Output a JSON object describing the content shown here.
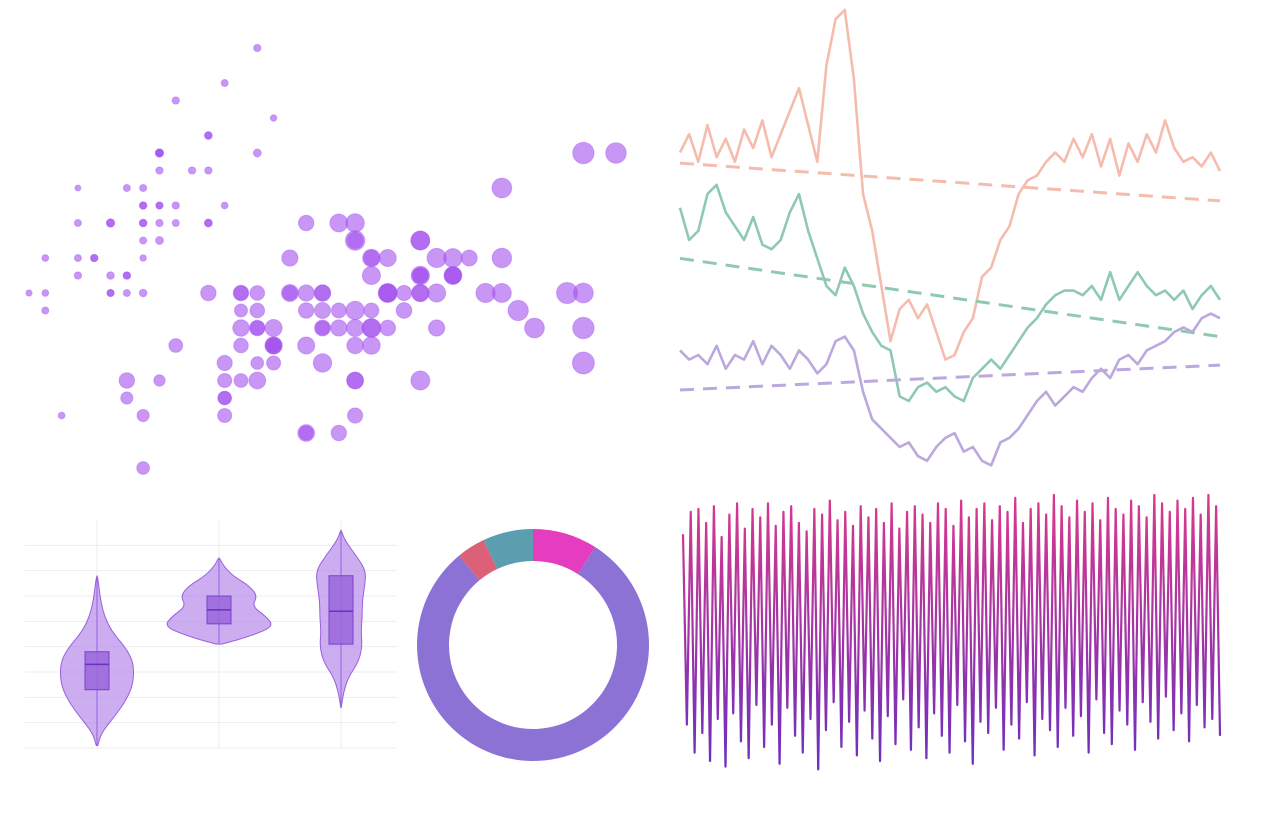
{
  "chart_data": [
    {
      "type": "scatter",
      "xlim": [
        4.3,
        7.9
      ],
      "ylim": [
        2.0,
        4.4
      ],
      "series": [
        {
          "color": "#a352ee",
          "x": [
            5.1,
            4.9,
            4.7,
            4.6,
            5.0,
            5.4,
            4.6,
            5.0,
            4.4,
            4.9,
            5.4,
            4.8,
            4.8,
            4.3,
            5.8,
            5.7,
            5.4,
            5.1,
            5.7,
            5.1,
            5.4,
            5.1,
            4.6,
            5.1,
            4.8,
            5.0,
            5.0,
            5.2,
            5.2,
            4.7,
            4.8,
            5.4,
            5.2,
            5.5,
            4.9,
            5.0,
            5.5,
            4.9,
            4.4,
            5.1,
            5.0,
            4.5,
            4.4,
            5.0,
            5.1,
            4.8,
            5.1,
            4.6,
            5.3,
            5.0,
            7.0,
            6.4,
            6.9,
            5.5,
            6.5,
            5.7,
            6.3,
            4.9,
            6.6,
            5.2,
            5.0,
            5.9,
            6.0,
            6.1,
            5.6,
            6.7,
            5.6,
            5.8,
            6.2,
            5.6,
            5.9,
            6.1,
            6.3,
            6.1,
            6.4,
            6.6,
            6.8,
            6.7,
            6.0,
            5.7,
            5.5,
            5.5,
            5.8,
            6.0,
            5.4,
            6.0,
            6.7,
            6.3,
            5.6,
            5.5,
            5.5,
            6.1,
            5.8,
            5.0,
            5.6,
            5.7,
            5.7,
            6.2,
            5.1,
            5.7,
            6.3,
            5.8,
            7.1,
            6.3,
            6.5,
            7.6,
            4.9,
            7.3,
            6.7,
            7.2,
            6.5,
            6.4,
            6.8,
            5.7,
            5.8,
            6.4,
            6.5,
            7.7,
            7.7,
            6.0,
            6.9,
            5.6,
            7.7,
            6.3,
            6.7,
            7.2,
            6.2,
            6.1,
            6.4,
            7.2,
            7.4,
            7.9,
            6.4,
            6.3,
            6.1,
            7.7,
            6.3,
            6.4,
            6.0,
            6.9,
            6.7,
            6.9,
            5.8,
            6.8,
            6.7,
            6.7,
            6.3,
            6.5,
            6.2,
            5.9
          ],
          "values": [
            3.5,
            3.0,
            3.2,
            3.1,
            3.6,
            3.9,
            3.4,
            3.4,
            2.9,
            3.1,
            3.7,
            3.4,
            3.0,
            3.0,
            4.0,
            4.4,
            3.9,
            3.5,
            3.8,
            3.8,
            3.4,
            3.7,
            3.6,
            3.3,
            3.4,
            3.0,
            3.4,
            3.5,
            3.4,
            3.2,
            3.1,
            3.4,
            4.1,
            4.2,
            3.1,
            3.2,
            3.5,
            3.6,
            3.0,
            3.4,
            3.5,
            2.3,
            3.2,
            3.5,
            3.8,
            3.0,
            3.8,
            3.2,
            3.7,
            3.3,
            3.2,
            3.2,
            3.1,
            2.3,
            2.8,
            2.8,
            3.3,
            2.4,
            2.9,
            2.7,
            2.0,
            3.0,
            2.2,
            2.9,
            2.9,
            3.1,
            3.0,
            2.7,
            2.2,
            2.5,
            3.2,
            2.8,
            2.5,
            2.8,
            2.9,
            3.0,
            2.8,
            3.0,
            2.9,
            2.6,
            2.4,
            2.4,
            2.7,
            2.7,
            3.0,
            3.4,
            3.1,
            2.3,
            3.0,
            2.5,
            2.6,
            3.0,
            2.6,
            2.3,
            2.7,
            3.0,
            2.9,
            2.9,
            2.5,
            2.8,
            3.3,
            2.7,
            3.0,
            2.9,
            3.0,
            3.0,
            2.5,
            2.9,
            2.5,
            3.6,
            3.2,
            2.7,
            3.0,
            2.5,
            2.8,
            3.2,
            3.0,
            3.8,
            2.6,
            2.2,
            3.2,
            2.8,
            2.8,
            2.7,
            3.3,
            3.2,
            2.8,
            3.0,
            2.8,
            3.0,
            2.8,
            3.8,
            2.8,
            2.8,
            2.6,
            3.0,
            3.4,
            3.1,
            3.0,
            3.1,
            3.1,
            3.1,
            2.7,
            3.2,
            3.3,
            3.0,
            2.5,
            3.0,
            3.4,
            3.0
          ],
          "sizes": [
            1.4,
            1.4,
            1.3,
            1.5,
            1.4,
            1.7,
            1.4,
            1.5,
            1.4,
            1.5,
            1.5,
            1.6,
            1.4,
            1.1,
            1.2,
            1.5,
            1.3,
            1.4,
            1.7,
            1.5,
            1.7,
            1.5,
            1.0,
            1.7,
            1.9,
            1.6,
            1.6,
            1.5,
            1.4,
            1.6,
            1.6,
            1.5,
            1.5,
            1.4,
            1.5,
            1.2,
            1.3,
            1.4,
            1.3,
            1.5,
            1.3,
            1.3,
            1.3,
            1.6,
            1.9,
            1.4,
            1.6,
            1.4,
            1.5,
            1.4,
            4.7,
            4.5,
            4.9,
            4.0,
            4.6,
            4.5,
            4.7,
            3.3,
            4.6,
            3.9,
            3.5,
            4.2,
            4.0,
            4.7,
            3.6,
            4.4,
            4.5,
            4.1,
            4.5,
            3.9,
            4.8,
            4.0,
            4.9,
            4.7,
            4.3,
            4.4,
            4.8,
            5.0,
            4.5,
            3.5,
            3.8,
            3.7,
            3.9,
            5.1,
            4.5,
            4.5,
            4.7,
            4.4,
            4.1,
            4.0,
            4.4,
            4.6,
            4.0,
            3.3,
            4.2,
            4.2,
            4.2,
            4.3,
            3.0,
            4.1,
            6.0,
            5.1,
            5.9,
            5.6,
            5.8,
            6.6,
            4.5,
            6.3,
            5.8,
            6.1,
            5.1,
            5.3,
            5.5,
            5.0,
            5.1,
            5.3,
            5.5,
            6.7,
            6.9,
            5.0,
            5.7,
            4.9,
            6.7,
            4.9,
            5.7,
            6.0,
            4.8,
            4.9,
            5.6,
            5.8,
            6.1,
            6.4,
            5.6,
            5.1,
            5.6,
            6.1,
            5.6,
            5.5,
            4.8,
            5.4,
            5.6,
            5.1,
            5.1,
            5.9,
            5.7,
            5.2,
            5.0,
            5.2,
            5.4,
            5.1
          ]
        }
      ]
    },
    {
      "type": "line",
      "ylim": [
        0,
        100
      ],
      "series": [
        {
          "color": "#f5bcae",
          "trend": [
            66.7,
            58.5
          ],
          "values": [
            69,
            73,
            67,
            75,
            68,
            72,
            67,
            74,
            70,
            76,
            68,
            73,
            78,
            83,
            75,
            67,
            88,
            98,
            100,
            85,
            60,
            52,
            40,
            28,
            35,
            37,
            33,
            36,
            30,
            24,
            25,
            30,
            33,
            42,
            44,
            50,
            53,
            60,
            63,
            64,
            67,
            69,
            67,
            72,
            68,
            73,
            66,
            72,
            64,
            71,
            67,
            73,
            69,
            76,
            70,
            67,
            68,
            66,
            69,
            65
          ]
        },
        {
          "color": "#8fc9b2",
          "trend": [
            46,
            29
          ],
          "values": [
            57,
            50,
            52,
            60,
            62,
            56,
            53,
            50,
            55,
            49,
            48,
            50,
            56,
            60,
            52,
            46,
            40,
            38,
            44,
            40,
            34,
            30,
            27,
            26,
            16,
            15,
            18,
            19,
            17,
            18,
            16,
            15,
            20,
            22,
            24,
            22,
            25,
            28,
            31,
            33,
            36,
            38,
            39,
            39,
            38,
            40,
            37,
            43,
            37,
            40,
            43,
            40,
            38,
            39,
            37,
            39,
            35,
            38,
            40,
            37
          ]
        },
        {
          "color": "#bba8de",
          "trend": [
            17.4,
            22.8
          ],
          "values": [
            26,
            24,
            25,
            23,
            27,
            22,
            25,
            24,
            28,
            23,
            27,
            25,
            22,
            26,
            24,
            21,
            23,
            28,
            29,
            26,
            17,
            11,
            9,
            7,
            5,
            6,
            3,
            2,
            5,
            7,
            8,
            4,
            5,
            2,
            1,
            6,
            7,
            9,
            12,
            15,
            17,
            14,
            16,
            18,
            17,
            20,
            22,
            20,
            24,
            25,
            23,
            26,
            27,
            28,
            30,
            31,
            30,
            33,
            34,
            33
          ]
        }
      ]
    },
    {
      "type": "violin",
      "ylim": [
        0,
        9
      ],
      "yticks": [
        0,
        1,
        2,
        3,
        4,
        5,
        6,
        7,
        8
      ],
      "grid": true,
      "color": "#b58ae9",
      "box_color": "#9a66d9",
      "groups": [
        {
          "y": [
            0.1,
            0.6,
            1.2,
            1.8,
            2.4,
            3.0,
            3.5,
            4.0,
            4.6,
            5.2,
            5.8,
            6.4,
            6.8
          ],
          "density": [
            0.02,
            0.12,
            0.45,
            0.75,
            0.95,
            1.0,
            0.95,
            0.75,
            0.4,
            0.2,
            0.1,
            0.05,
            0.01
          ],
          "q1": 2.3,
          "median": 3.3,
          "q3": 3.8
        },
        {
          "y": [
            4.1,
            4.4,
            4.8,
            5.2,
            5.6,
            6.0,
            6.4,
            6.8,
            7.2,
            7.5
          ],
          "density": [
            0.05,
            0.55,
            1.0,
            0.85,
            0.6,
            0.7,
            0.55,
            0.25,
            0.08,
            0.01
          ],
          "q1": 4.9,
          "median": 5.45,
          "q3": 6.0
        },
        {
          "y": [
            1.6,
            2.2,
            2.8,
            3.4,
            4.0,
            4.6,
            5.2,
            5.8,
            6.4,
            7.0,
            7.6,
            8.2,
            8.6
          ],
          "density": [
            0.01,
            0.1,
            0.3,
            0.7,
            0.85,
            0.8,
            0.85,
            0.85,
            0.95,
            1.0,
            0.6,
            0.15,
            0.01
          ],
          "q1": 4.1,
          "median": 5.4,
          "q3": 6.8
        }
      ]
    },
    {
      "type": "pie",
      "donut": true,
      "values": [
        9,
        80,
        4,
        7
      ],
      "colors": [
        "#e43dbf",
        "#8b72d4",
        "#dc6178",
        "#5a9eb0"
      ]
    },
    {
      "type": "line",
      "ylim": [
        0,
        100
      ],
      "gradient": [
        "#d9398b",
        "#6b2fbf"
      ],
      "series": [
        {
          "values": [
            86,
            18,
            94,
            8,
            95,
            15,
            90,
            5,
            96,
            20,
            85,
            3,
            93,
            22,
            97,
            12,
            88,
            6,
            95,
            25,
            92,
            10,
            97,
            18,
            89,
            4,
            94,
            24,
            96,
            14,
            90,
            8,
            87,
            20,
            95,
            2,
            93,
            16,
            98,
            26,
            91,
            10,
            94,
            19,
            89,
            7,
            96,
            23,
            92,
            13,
            95,
            5,
            90,
            21,
            97,
            11,
            88,
            27,
            94,
            9,
            96,
            17,
            93,
            6,
            90,
            22,
            97,
            14,
            95,
            8,
            89,
            25,
            98,
            12,
            92,
            4,
            95,
            19,
            97,
            15,
            91,
            24,
            96,
            9,
            94,
            18,
            99,
            13,
            90,
            26,
            95,
            7,
            97,
            20,
            93,
            16,
            100,
            10,
            96,
            24,
            92,
            14,
            98,
            21,
            94,
            8,
            97,
            27,
            91,
            15,
            99,
            11,
            95,
            23,
            93,
            18,
            98,
            9,
            96,
            26,
            92,
            19,
            100,
            13,
            97,
            28,
            94,
            16,
            98,
            22,
            95,
            12,
            99,
            25,
            93,
            17,
            100,
            20,
            96,
            14
          ]
        }
      ]
    }
  ]
}
